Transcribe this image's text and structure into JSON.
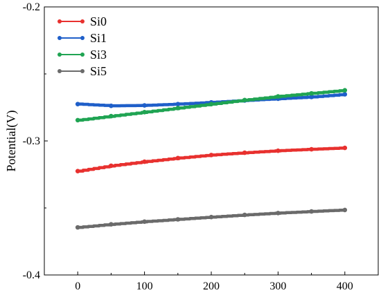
{
  "chart_data": {
    "type": "line",
    "title": "",
    "xlabel": "",
    "ylabel": "Potential(V)",
    "xlim": [
      -50,
      450
    ],
    "ylim": [
      -0.4,
      -0.2
    ],
    "xticks": [
      0,
      100,
      200,
      300,
      400
    ],
    "xtick_labels": [
      "0",
      "100",
      "200",
      "300",
      "400"
    ],
    "yticks": [
      -0.4,
      -0.3,
      -0.2
    ],
    "ytick_labels": [
      "-0.4",
      "-0.3",
      "-0.2"
    ],
    "grid": false,
    "legend_position": "top-left",
    "x": [
      0,
      50,
      100,
      150,
      200,
      250,
      300,
      350,
      400
    ],
    "series": [
      {
        "name": "Si0",
        "color": "#e8312f",
        "values": [
          -0.3225,
          -0.3185,
          -0.3155,
          -0.3128,
          -0.3105,
          -0.3088,
          -0.3073,
          -0.3062,
          -0.3052
        ]
      },
      {
        "name": "Si1",
        "color": "#1f5fc9",
        "values": [
          -0.2725,
          -0.2738,
          -0.2735,
          -0.2725,
          -0.2712,
          -0.2698,
          -0.2685,
          -0.2672,
          -0.2652
        ]
      },
      {
        "name": "Si3",
        "color": "#20a453",
        "values": [
          -0.2845,
          -0.2815,
          -0.2785,
          -0.2755,
          -0.2725,
          -0.2695,
          -0.2668,
          -0.2645,
          -0.2622
        ]
      },
      {
        "name": "Si5",
        "color": "#6b6b6b",
        "values": [
          -0.3645,
          -0.3622,
          -0.3602,
          -0.3585,
          -0.3568,
          -0.3552,
          -0.3538,
          -0.3526,
          -0.3515
        ]
      }
    ]
  }
}
